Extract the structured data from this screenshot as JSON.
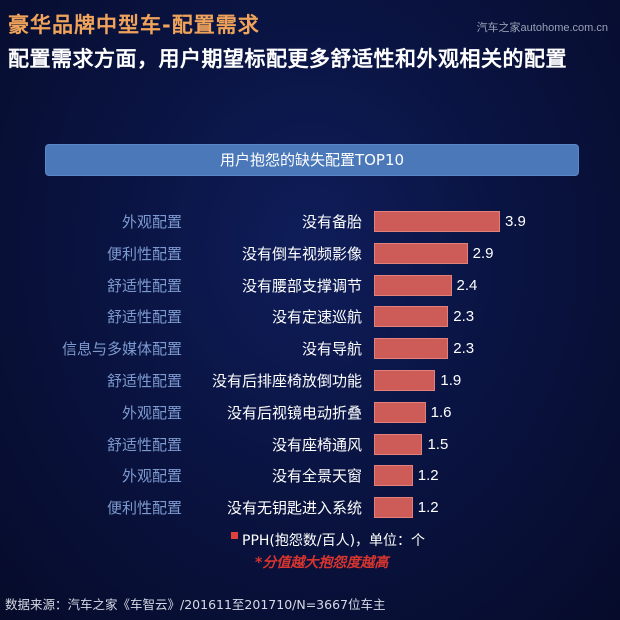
{
  "header": {
    "title": "豪华品牌中型车-配置需求",
    "brand": "汽车之家autohome.com.cn",
    "subtitle": "配置需求方面，用户期望标配更多舒适性和外观相关的配置"
  },
  "panel": {
    "title": "用户抱怨的缺失配置TOP10"
  },
  "rows": [
    {
      "category": "外观配置",
      "item": "没有备胎",
      "value": "3.9"
    },
    {
      "category": "便利性配置",
      "item": "没有倒车视频影像",
      "value": "2.9"
    },
    {
      "category": "舒适性配置",
      "item": "没有腰部支撑调节",
      "value": "2.4"
    },
    {
      "category": "舒适性配置",
      "item": "没有定速巡航",
      "value": "2.3"
    },
    {
      "category": "信息与多媒体配置",
      "item": "没有导航",
      "value": "2.3"
    },
    {
      "category": "舒适性配置",
      "item": "没有后排座椅放倒功能",
      "value": "1.9"
    },
    {
      "category": "外观配置",
      "item": "没有后视镜电动折叠",
      "value": "1.6"
    },
    {
      "category": "舒适性配置",
      "item": "没有座椅通风",
      "value": "1.5"
    },
    {
      "category": "外观配置",
      "item": "没有全景天窗",
      "value": "1.2"
    },
    {
      "category": "便利性配置",
      "item": "没有无钥匙进入系统",
      "value": "1.2"
    }
  ],
  "legend": {
    "label": "PPH(抱怨数/百人)，单位：个",
    "color": "#cd5b57"
  },
  "note": "*分值越大抱怨度越高",
  "source": "数据来源：汽车之家《车智云》/201611至201710/N=3667位车主",
  "chart_data": {
    "type": "bar",
    "orientation": "horizontal",
    "title": "用户抱怨的缺失配置TOP10",
    "categories": [
      "没有备胎",
      "没有倒车视频影像",
      "没有腰部支撑调节",
      "没有定速巡航",
      "没有导航",
      "没有后排座椅放倒功能",
      "没有后视镜电动折叠",
      "没有座椅通风",
      "没有全景天窗",
      "没有无钥匙进入系统"
    ],
    "groups": [
      "外观配置",
      "便利性配置",
      "舒适性配置",
      "舒适性配置",
      "信息与多媒体配置",
      "舒适性配置",
      "外观配置",
      "舒适性配置",
      "外观配置",
      "便利性配置"
    ],
    "series": [
      {
        "name": "PPH(抱怨数/百人)",
        "values": [
          3.9,
          2.9,
          2.4,
          2.3,
          2.3,
          1.9,
          1.6,
          1.5,
          1.2,
          1.2
        ]
      }
    ],
    "xlabel": "",
    "ylabel": "",
    "unit": "个",
    "grid": false,
    "legend_position": "bottom",
    "bar_color": "#cd5b57"
  }
}
